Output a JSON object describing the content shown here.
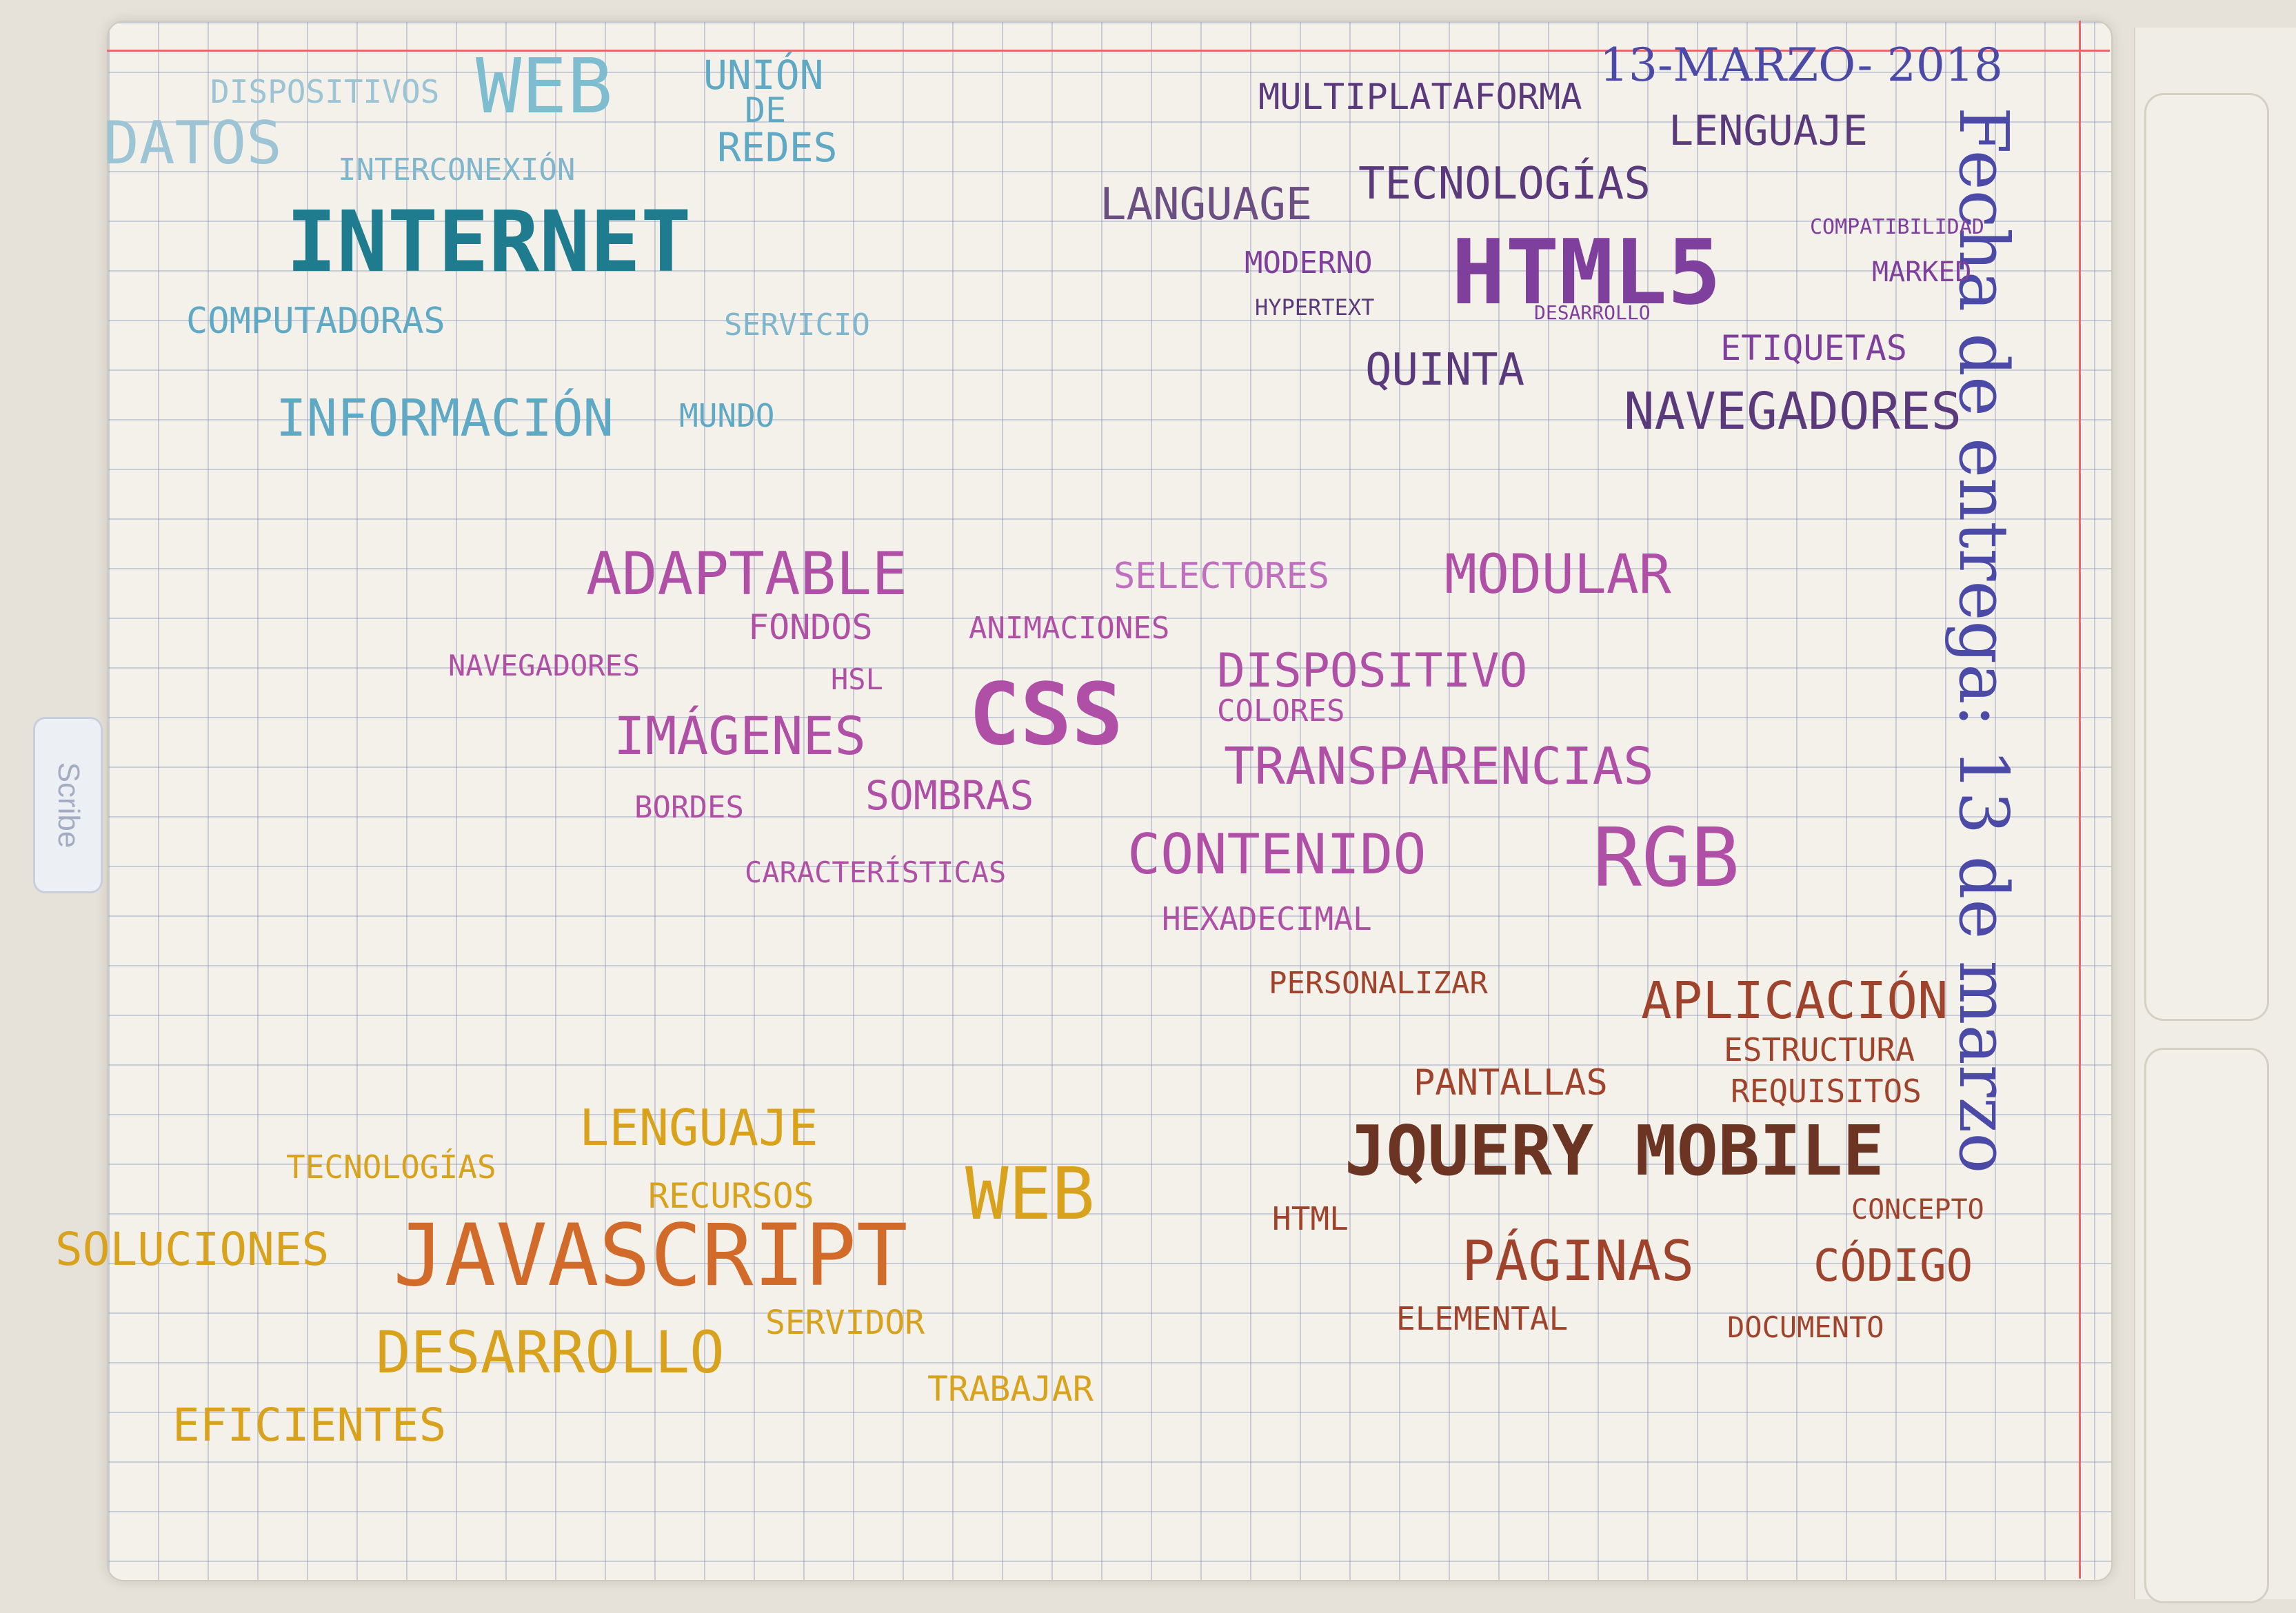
{
  "tab_label": "Scribe",
  "date_header": "13-MARZO- 2018",
  "delivery_note": "Fecha de entrega: 13 de marzo",
  "colors": {
    "internet": "#3aa6ba",
    "internet_main": "#1f7c8f",
    "html5": "#7f3f9c",
    "html5_dark": "#5a3a7a",
    "css": "#b04fa6",
    "css_light": "#c06fbf",
    "jquery": "#a0432c",
    "jquery_dark": "#6b3423",
    "javascript": "#d8a21c",
    "javascript_main": "#d26a2a",
    "date": "#4b4aa6"
  },
  "clusters": {
    "internet": [
      "DISPOSITIVOS",
      "WEB",
      "UNIÓN",
      "DE",
      "REDES",
      "DATOS",
      "INTERCONEXIÓN",
      "INTERNET",
      "COMPUTADORAS",
      "SERVICIO",
      "INFORMACIÓN",
      "MUNDO"
    ],
    "html5": [
      "MULTIPLATAFORMA",
      "LENGUAJE",
      "TECNOLOGÍAS",
      "LANGUAGE",
      "COMPATIBILIDAD",
      "MODERNO",
      "HTML5",
      "MARKED",
      "HYPERTEXT",
      "DESARROLLO",
      "ETIQUETAS",
      "QUINTA",
      "NAVEGADORES"
    ],
    "css": [
      "ADAPTABLE",
      "SELECTORES",
      "MODULAR",
      "FONDOS",
      "ANIMACIONES",
      "NAVEGADORES",
      "HSL",
      "DISPOSITIVO",
      "IMÁGENES",
      "CSS",
      "COLORES",
      "TRANSPARENCIAS",
      "BORDES",
      "SOMBRAS",
      "CARACTERÍSTICAS",
      "CONTENIDO",
      "RGB",
      "HEXADECIMAL"
    ],
    "jquery": [
      "PERSONALIZAR",
      "APLICACIÓN",
      "ESTRUCTURA",
      "PANTALLAS",
      "REQUISITOS",
      "JQUERY MOBILE",
      "HTML",
      "CONCEPTO",
      "PÁGINAS",
      "CÓDIGO",
      "ELEMENTAL",
      "DOCUMENTO"
    ],
    "javascript": [
      "LENGUAJE",
      "TECNOLOGÍAS",
      "RECURSOS",
      "WEB",
      "SOLUCIONES",
      "JAVASCRIPT",
      "SERVIDOR",
      "DESARROLLO",
      "TRABAJAR",
      "EFICIENTES"
    ]
  }
}
